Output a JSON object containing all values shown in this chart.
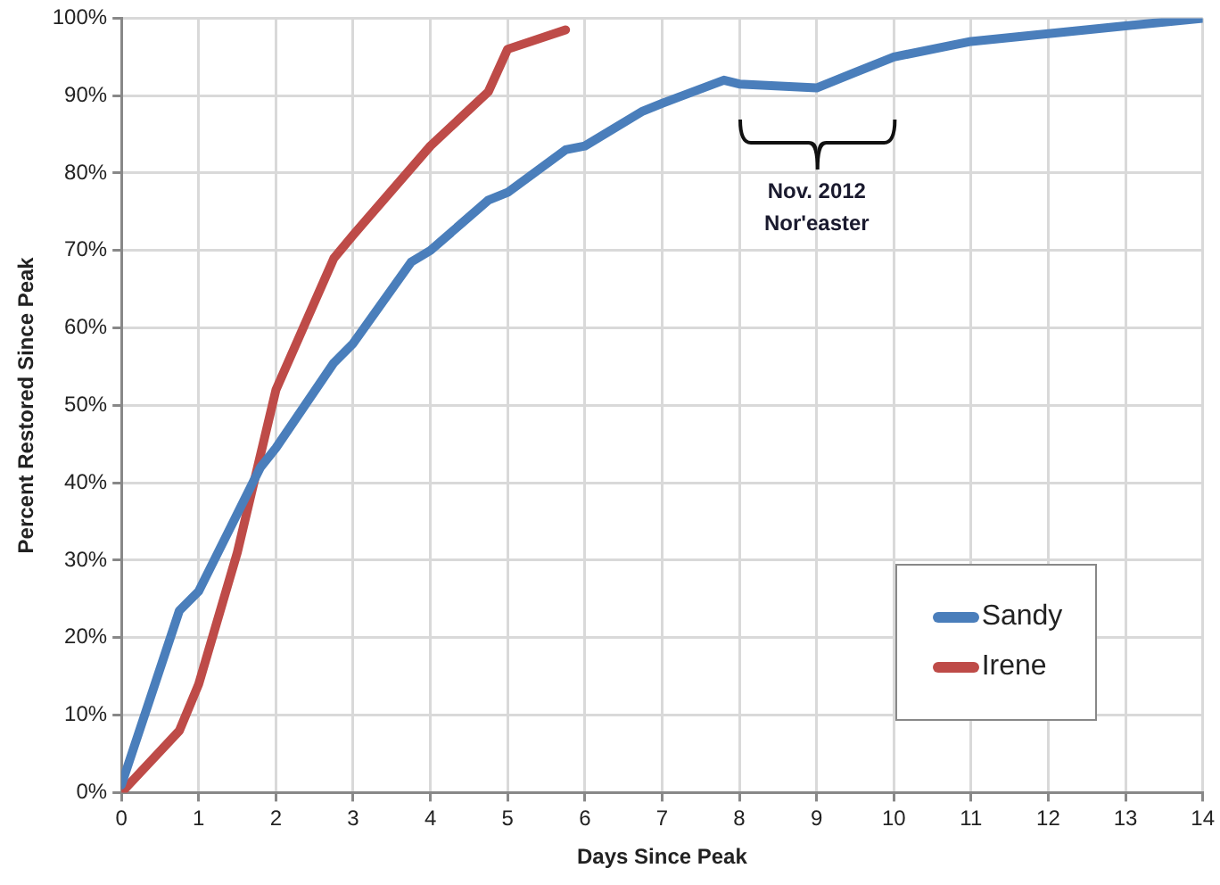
{
  "chart_data": {
    "type": "line",
    "xlabel": "Days Since Peak",
    "ylabel": "Percent Restored Since Peak",
    "xlim": [
      0,
      14
    ],
    "xticks": [
      0,
      1,
      2,
      3,
      4,
      5,
      6,
      7,
      8,
      9,
      10,
      11,
      12,
      13,
      14
    ],
    "ylim": [
      0,
      100
    ],
    "yticks": [
      {
        "value": 0,
        "label": "0%"
      },
      {
        "value": 10,
        "label": "10%"
      },
      {
        "value": 20,
        "label": "20%"
      },
      {
        "value": 30,
        "label": "30%"
      },
      {
        "value": 40,
        "label": "40%"
      },
      {
        "value": 50,
        "label": "50%"
      },
      {
        "value": 60,
        "label": "60%"
      },
      {
        "value": 70,
        "label": "70%"
      },
      {
        "value": 80,
        "label": "80%"
      },
      {
        "value": 90,
        "label": "90%"
      },
      {
        "value": 100,
        "label": "100%"
      }
    ],
    "grid": true,
    "legend": "bottom right",
    "marker": "none",
    "line_style": "solid",
    "series": [
      {
        "name": "Sandy",
        "color": "#4a7ebb",
        "x": [
          0,
          0.75,
          1,
          1.8,
          2,
          2.75,
          3,
          3.75,
          4,
          4.75,
          5,
          5.75,
          6,
          6.75,
          7,
          7.8,
          8,
          9,
          9.5,
          10,
          11,
          12,
          13,
          14
        ],
        "values": [
          1,
          23.5,
          26,
          42,
          44.5,
          55.5,
          58,
          68.5,
          70,
          76.5,
          77.5,
          83,
          83.5,
          88,
          89,
          92,
          91.5,
          91,
          93,
          95,
          97,
          98,
          99,
          100
        ]
      },
      {
        "name": "Irene",
        "color": "#be4b48",
        "x": [
          0,
          0.75,
          1,
          1.5,
          2,
          2.75,
          3,
          4,
          4.75,
          5,
          5.75
        ],
        "values": [
          0,
          8,
          14,
          31,
          52,
          69,
          72,
          83.5,
          90.5,
          96,
          98.5
        ]
      }
    ],
    "annotations": [
      "Nov. 2012\nNor'easter"
    ]
  }
}
